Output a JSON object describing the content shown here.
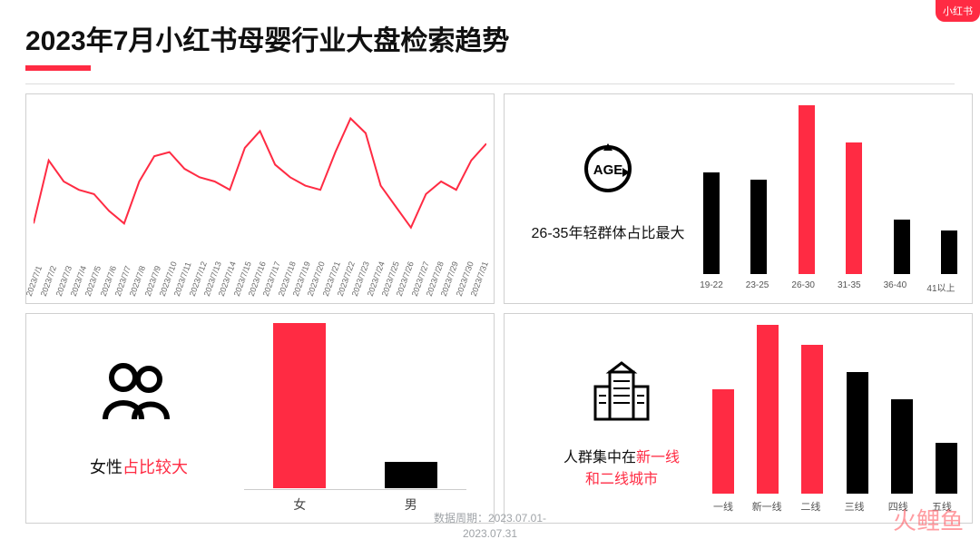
{
  "header": {
    "title": "2023年7月小红书母婴行业大盘检索趋势",
    "underline_color": "#ff2b43",
    "logo_text": "小红书"
  },
  "trend_line": {
    "type": "line",
    "stroke_color": "#ff2b43",
    "stroke_width": 2,
    "x_labels": [
      "2023/7/1",
      "2023/7/2",
      "2023/7/3",
      "2023/7/4",
      "2023/7/5",
      "2023/7/6",
      "2023/7/7",
      "2023/7/8",
      "2023/7/9",
      "2023/7/10",
      "2023/7/11",
      "2023/7/12",
      "2023/7/13",
      "2023/7/14",
      "2023/7/15",
      "2023/7/16",
      "2023/7/17",
      "2023/7/18",
      "2023/7/19",
      "2023/7/20",
      "2023/7/21",
      "2023/7/22",
      "2023/7/23",
      "2023/7/24",
      "2023/7/25",
      "2023/7/26",
      "2023/7/27",
      "2023/7/28",
      "2023/7/29",
      "2023/7/30",
      "2023/7/31"
    ],
    "y_values": [
      42,
      72,
      62,
      58,
      56,
      48,
      42,
      62,
      74,
      76,
      68,
      64,
      62,
      58,
      78,
      86,
      70,
      64,
      60,
      58,
      76,
      92,
      85,
      60,
      50,
      40,
      56,
      62,
      58,
      72,
      80
    ],
    "y_range": [
      30,
      100
    ]
  },
  "age_chart": {
    "type": "bar",
    "icon_label": "AGE",
    "caption": "26-35年轻群体占比最大",
    "categories": [
      "19-22",
      "23-25",
      "26-30",
      "31-35",
      "36-40",
      "41以上"
    ],
    "values": [
      60,
      56,
      100,
      78,
      32,
      26
    ],
    "colors": [
      "#000000",
      "#000000",
      "#ff2b43",
      "#ff2b43",
      "#000000",
      "#000000"
    ],
    "max_value": 100
  },
  "gender_chart": {
    "type": "bar",
    "caption_prefix": "女性",
    "caption_highlight": "占比较大",
    "categories": [
      "女",
      "男"
    ],
    "values": [
      100,
      16
    ],
    "colors": [
      "#ff2b43",
      "#000000"
    ],
    "max_value": 100
  },
  "city_chart": {
    "type": "bar",
    "caption_line1_prefix": "人群集中在",
    "caption_line1_highlight": "新一线",
    "caption_line2_highlight": "和二线城市",
    "categories": [
      "一线",
      "新一线",
      "二线",
      "三线",
      "四线",
      "五线"
    ],
    "values": [
      62,
      100,
      88,
      72,
      56,
      30
    ],
    "colors": [
      "#ff2b43",
      "#ff2b43",
      "#ff2b43",
      "#000000",
      "#000000",
      "#000000"
    ],
    "max_value": 100
  },
  "footer": {
    "line1": "数据周期：2023.07.01-",
    "line2": "2023.07.31"
  },
  "watermark": "火鲤鱼"
}
